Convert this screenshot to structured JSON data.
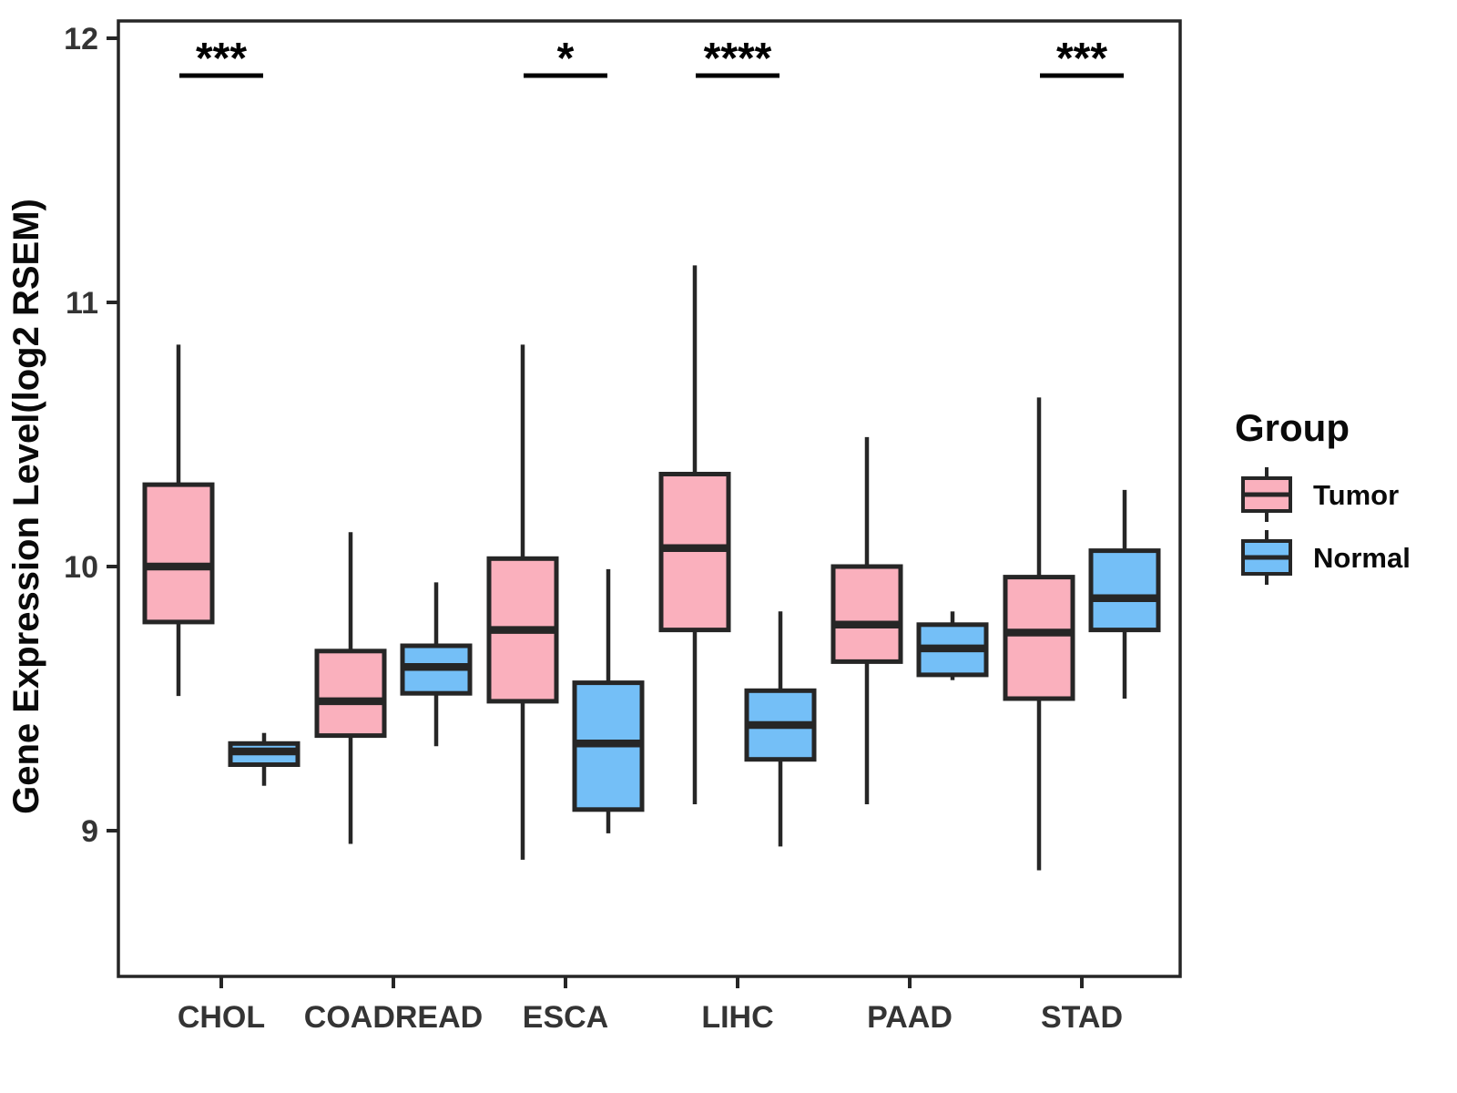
{
  "chart_data": {
    "type": "boxplot",
    "title": "",
    "xlabel": "",
    "ylabel": "Gene Expression Level(log2 RSEM)",
    "categories": [
      "CHOL",
      "COADREAD",
      "ESCA",
      "LIHC",
      "PAAD",
      "STAD"
    ],
    "y_ticks": [
      9,
      10,
      11,
      12
    ],
    "ylim": [
      8.45,
      12.07
    ],
    "grid": false,
    "colors": {
      "tumor_fill": "#FAB0BD",
      "normal_fill": "#74BFF7",
      "line": "#262626",
      "background": "#FFFFFF"
    },
    "series": [
      {
        "name": "Tumor",
        "color": "#FAB0BD",
        "boxes": [
          {
            "category": "CHOL",
            "whisker_low": 9.51,
            "q1": 9.79,
            "median": 10.0,
            "q3": 10.31,
            "whisker_high": 10.84
          },
          {
            "category": "COADREAD",
            "whisker_low": 8.95,
            "q1": 9.36,
            "median": 9.49,
            "q3": 9.68,
            "whisker_high": 10.13
          },
          {
            "category": "ESCA",
            "whisker_low": 8.89,
            "q1": 9.49,
            "median": 9.76,
            "q3": 10.03,
            "whisker_high": 10.84
          },
          {
            "category": "LIHC",
            "whisker_low": 9.1,
            "q1": 9.76,
            "median": 10.07,
            "q3": 10.35,
            "whisker_high": 11.14
          },
          {
            "category": "PAAD",
            "whisker_low": 9.1,
            "q1": 9.64,
            "median": 9.78,
            "q3": 10.0,
            "whisker_high": 10.49
          },
          {
            "category": "STAD",
            "whisker_low": 8.85,
            "q1": 9.5,
            "median": 9.75,
            "q3": 9.96,
            "whisker_high": 10.64
          }
        ]
      },
      {
        "name": "Normal",
        "color": "#74BFF7",
        "boxes": [
          {
            "category": "CHOL",
            "whisker_low": 9.17,
            "q1": 9.25,
            "median": 9.3,
            "q3": 9.33,
            "whisker_high": 9.37
          },
          {
            "category": "COADREAD",
            "whisker_low": 9.32,
            "q1": 9.52,
            "median": 9.62,
            "q3": 9.7,
            "whisker_high": 9.94
          },
          {
            "category": "ESCA",
            "whisker_low": 8.99,
            "q1": 9.08,
            "median": 9.33,
            "q3": 9.56,
            "whisker_high": 9.99
          },
          {
            "category": "LIHC",
            "whisker_low": 8.94,
            "q1": 9.27,
            "median": 9.4,
            "q3": 9.53,
            "whisker_high": 9.83
          },
          {
            "category": "PAAD",
            "whisker_low": 9.57,
            "q1": 9.59,
            "median": 9.69,
            "q3": 9.78,
            "whisker_high": 9.83
          },
          {
            "category": "STAD",
            "whisker_low": 9.5,
            "q1": 9.76,
            "median": 9.88,
            "q3": 10.06,
            "whisker_high": 10.29
          }
        ]
      }
    ],
    "significance": [
      {
        "category": "CHOL",
        "label": "***"
      },
      {
        "category": "ESCA",
        "label": "*"
      },
      {
        "category": "LIHC",
        "label": "****"
      },
      {
        "category": "STAD",
        "label": "***"
      }
    ],
    "legend": {
      "title": "Group",
      "position": "right",
      "entries": [
        {
          "label": "Tumor",
          "color": "#FAB0BD"
        },
        {
          "label": "Normal",
          "color": "#74BFF7"
        }
      ]
    }
  }
}
